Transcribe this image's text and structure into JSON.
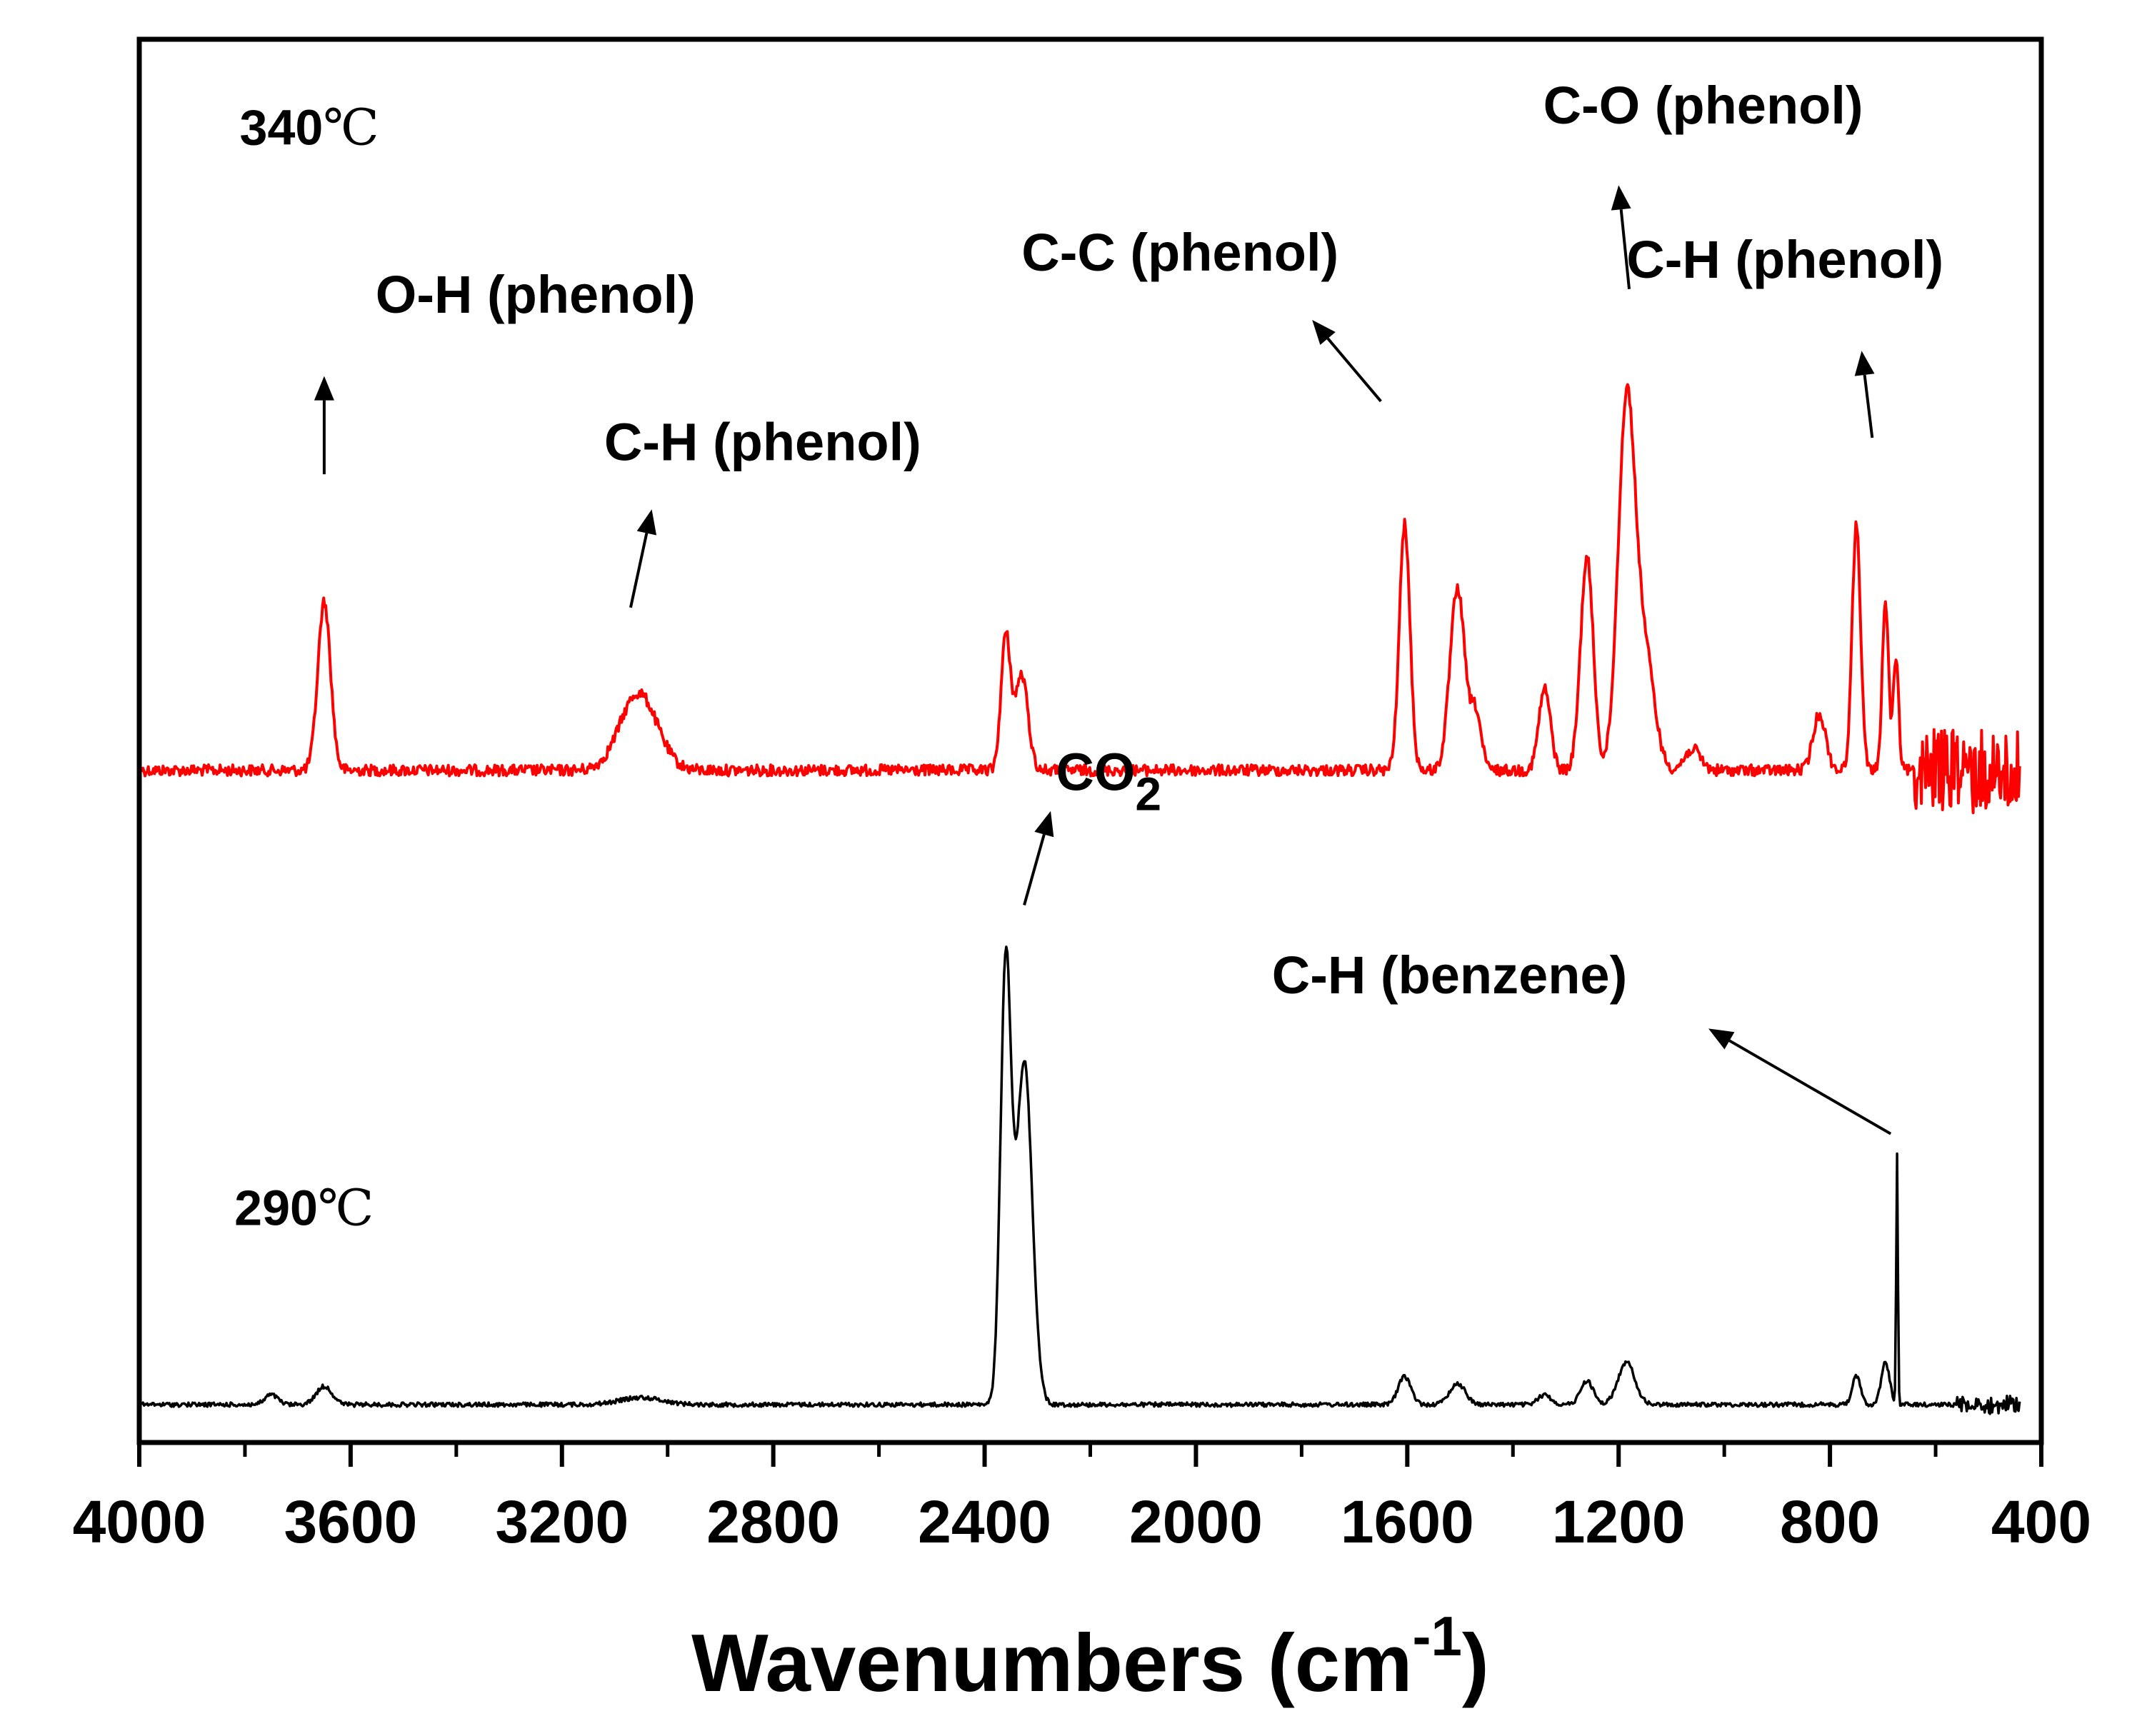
{
  "chart_data": {
    "type": "line",
    "xlabel": "Wavenumbers (cm",
    "xlabel_sup": "-1",
    "xlabel_close": ")",
    "ylabel": "",
    "xlim": [
      4000,
      400
    ],
    "x_reversed": true,
    "ylim": [
      0,
      1
    ],
    "yticks_shown": false,
    "x_major_ticks": [
      4000,
      3600,
      3200,
      2800,
      2400,
      2000,
      1600,
      1200,
      800,
      400
    ],
    "x_tick_labels": [
      "4000",
      "3600",
      "3200",
      "2800",
      "2400",
      "2000",
      "1600",
      "1200",
      "800",
      "400"
    ],
    "x_minor_ticks": [
      3800,
      3400,
      3000,
      2600,
      2200,
      1800,
      1400,
      1000,
      600
    ],
    "series": [
      {
        "name": "340℃",
        "color": "#ff0000",
        "baseline": 0.521,
        "noise": 0.004,
        "peaks": [
          {
            "x": 3650,
            "y": 0.12,
            "w": 12
          },
          {
            "x": 3055,
            "y": 0.055,
            "w": 35
          },
          {
            "x": 2360,
            "y": 0.095,
            "w": 9
          },
          {
            "x": 2330,
            "y": 0.068,
            "w": 12
          },
          {
            "x": 1605,
            "y": 0.175,
            "w": 10
          },
          {
            "x": 1505,
            "y": 0.13,
            "w": 14
          },
          {
            "x": 1470,
            "y": 0.04,
            "w": 10
          },
          {
            "x": 1340,
            "y": 0.058,
            "w": 11
          },
          {
            "x": 1260,
            "y": 0.152,
            "w": 12
          },
          {
            "x": 1185,
            "y": 0.26,
            "w": 16
          },
          {
            "x": 1150,
            "y": 0.08,
            "w": 18
          },
          {
            "x": 1060,
            "y": 0.015,
            "w": 15
          },
          {
            "x": 820,
            "y": 0.04,
            "w": 12
          },
          {
            "x": 750,
            "y": 0.175,
            "w": 8
          },
          {
            "x": 695,
            "y": 0.12,
            "w": 6
          },
          {
            "x": 675,
            "y": 0.08,
            "w": 5
          }
        ],
        "noisy_tail_from": 640
      },
      {
        "name": "290℃",
        "color": "#000000",
        "baseline": 0.973,
        "noise": 0.0015,
        "peaks": [
          {
            "x": 3750,
            "y": 0.007,
            "w": 12
          },
          {
            "x": 3650,
            "y": 0.013,
            "w": 15
          },
          {
            "x": 3050,
            "y": 0.005,
            "w": 40
          },
          {
            "x": 2360,
            "y": 0.31,
            "w": 10
          },
          {
            "x": 2325,
            "y": 0.245,
            "w": 15
          },
          {
            "x": 1605,
            "y": 0.02,
            "w": 12
          },
          {
            "x": 1505,
            "y": 0.015,
            "w": 15
          },
          {
            "x": 1340,
            "y": 0.007,
            "w": 12
          },
          {
            "x": 1260,
            "y": 0.017,
            "w": 12
          },
          {
            "x": 1185,
            "y": 0.03,
            "w": 16
          },
          {
            "x": 750,
            "y": 0.02,
            "w": 8
          },
          {
            "x": 695,
            "y": 0.03,
            "w": 8
          },
          {
            "x": 673,
            "y": 0.178,
            "w": 1.6
          }
        ],
        "noisy_tail_from": 560
      }
    ],
    "curve_labels": [
      {
        "text": "340",
        "unit": "℃",
        "x": 3810,
        "y": 0.075
      },
      {
        "text": "290",
        "unit": "℃",
        "x": 3820,
        "y": 0.845
      }
    ],
    "annotations": [
      {
        "id": "oh-phenol",
        "text": "O-H (phenol)",
        "sub": "",
        "text_x": 3250,
        "text_y": 0.195,
        "anchor": "middle",
        "arrow_from": [
          3650,
          0.31
        ],
        "arrow_to": [
          3650,
          0.24
        ]
      },
      {
        "id": "ch-phenol-1",
        "text": "C-H (phenol)",
        "sub": "",
        "text_x": 2820,
        "text_y": 0.3,
        "anchor": "middle",
        "arrow_from": [
          3070,
          0.405
        ],
        "arrow_to": [
          3030,
          0.335
        ]
      },
      {
        "id": "cc-phenol",
        "text": "C-C (phenol)",
        "sub": "",
        "text_x": 2030,
        "text_y": 0.165,
        "anchor": "middle",
        "arrow_from": [
          1650,
          0.258
        ],
        "arrow_to": [
          1780,
          0.2
        ]
      },
      {
        "id": "co-phenol",
        "text": "C-O (phenol)",
        "sub": "",
        "text_x": 1040,
        "text_y": 0.06,
        "anchor": "middle",
        "arrow_from": [
          1180,
          0.178
        ],
        "arrow_to": [
          1200,
          0.104
        ]
      },
      {
        "id": "ch-phenol-2",
        "text": "C-H (phenol)",
        "sub": "",
        "text_x": 885,
        "text_y": 0.17,
        "anchor": "middle",
        "arrow_from": [
          720,
          0.284
        ],
        "arrow_to": [
          740,
          0.222
        ]
      },
      {
        "id": "co2",
        "text": "CO",
        "sub": "2",
        "text_x": 2265,
        "text_y": 0.535,
        "anchor": "start",
        "arrow_from": [
          2325,
          0.617
        ],
        "arrow_to": [
          2275,
          0.55
        ]
      },
      {
        "id": "ch-benzene",
        "text": "C-H (benzene)",
        "sub": "",
        "text_x": 1520,
        "text_y": 0.68,
        "anchor": "middle",
        "arrow_from": [
          685,
          0.78
        ],
        "arrow_to": [
          1030,
          0.705
        ]
      }
    ]
  }
}
